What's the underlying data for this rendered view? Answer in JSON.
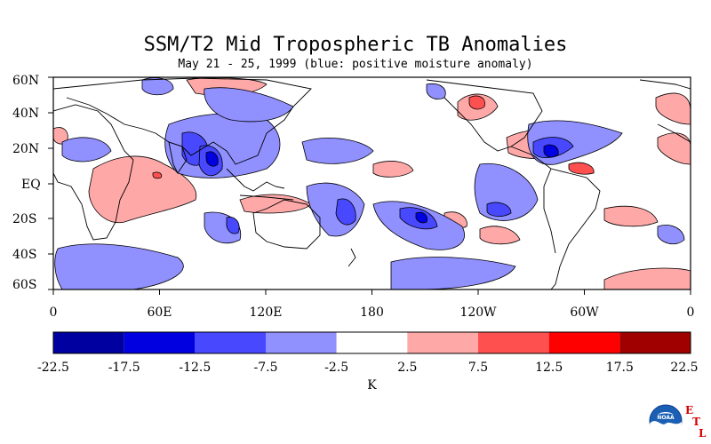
{
  "title": "SSM/T2 Mid Tropospheric TB Anomalies",
  "subtitle": "May 21 - 25, 1999 (blue: positive moisture anomaly)",
  "map": {
    "lat_labels": [
      "60N",
      "40N",
      "20N",
      "EQ",
      "20S",
      "40S",
      "60S"
    ],
    "lon_labels": [
      "0",
      "60E",
      "120E",
      "180",
      "120W",
      "60W",
      "0"
    ],
    "lat_range": [
      -60,
      60
    ],
    "lon_range": [
      0,
      360
    ]
  },
  "colorbar": {
    "unit_label": "K",
    "tick_labels": [
      "-22.5",
      "-17.5",
      "-12.5",
      "-7.5",
      "-2.5",
      "2.5",
      "7.5",
      "12.5",
      "17.5",
      "22.5"
    ],
    "colors": [
      "#0000a0",
      "#0000e0",
      "#4848ff",
      "#9090ff",
      "#ffffff",
      "#ffa8a8",
      "#ff5050",
      "#ff0000",
      "#a00000"
    ]
  },
  "logo": {
    "text": "NOAA",
    "letters": [
      "E",
      "T",
      "L"
    ]
  }
}
